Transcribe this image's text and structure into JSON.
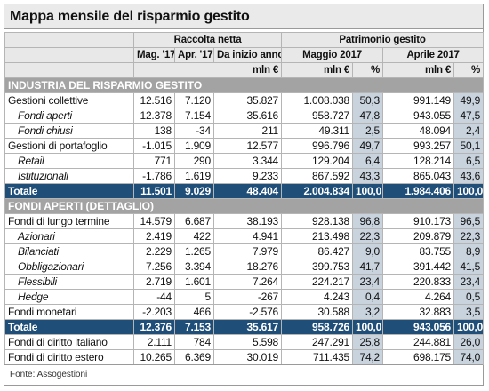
{
  "title": "Mappa mensile del risparmio gestito",
  "table": {
    "group_headers": [
      "Raccolta netta",
      "Patrimonio gestito"
    ],
    "column_headers": [
      "Mag. '17",
      "Apr. '17",
      "Da inizio anno",
      "Maggio 2017",
      "Aprile 2017"
    ],
    "unit_headers": [
      "mln €",
      "mln €",
      "%",
      "mln €",
      "%"
    ],
    "sections": [
      {
        "title": "INDUSTRIA DEL RISPARMIO GESTITO",
        "rows": [
          {
            "label": "Gestioni collettive",
            "kind": "main",
            "cells": [
              "12.516",
              "7.120",
              "35.827",
              "1.008.038",
              "50,3",
              "991.149",
              "49,9"
            ]
          },
          {
            "label": "Fondi aperti",
            "kind": "sub",
            "cells": [
              "12.378",
              "7.154",
              "35.616",
              "958.727",
              "47,8",
              "943.055",
              "47,5"
            ]
          },
          {
            "label": "Fondi chiusi",
            "kind": "sub",
            "cells": [
              "138",
              "-34",
              "211",
              "49.311",
              "2,5",
              "48.094",
              "2,4"
            ]
          },
          {
            "label": "Gestioni di portafoglio",
            "kind": "main",
            "cells": [
              "-1.015",
              "1.909",
              "12.577",
              "996.796",
              "49,7",
              "993.257",
              "50,1"
            ]
          },
          {
            "label": "Retail",
            "kind": "sub",
            "cells": [
              "771",
              "290",
              "3.344",
              "129.204",
              "6,4",
              "128.214",
              "6,5"
            ]
          },
          {
            "label": "Istituzionali",
            "kind": "sub",
            "cells": [
              "-1.786",
              "1.619",
              "9.233",
              "867.592",
              "43,3",
              "865.043",
              "43,6"
            ]
          },
          {
            "label": "Totale",
            "kind": "total",
            "cells": [
              "11.501",
              "9.029",
              "48.404",
              "2.004.834",
              "100,0",
              "1.984.406",
              "100,0"
            ]
          }
        ]
      },
      {
        "title": "FONDI APERTI (DETTAGLIO)",
        "rows": [
          {
            "label": "Fondi di lungo termine",
            "kind": "main",
            "cells": [
              "14.579",
              "6.687",
              "38.193",
              "928.138",
              "96,8",
              "910.173",
              "96,5"
            ]
          },
          {
            "label": "Azionari",
            "kind": "sub",
            "cells": [
              "2.419",
              "422",
              "4.941",
              "213.498",
              "22,3",
              "209.879",
              "22,3"
            ]
          },
          {
            "label": "Bilanciati",
            "kind": "sub",
            "cells": [
              "2.229",
              "1.265",
              "7.979",
              "86.427",
              "9,0",
              "83.755",
              "8,9"
            ]
          },
          {
            "label": "Obbligazionari",
            "kind": "sub",
            "cells": [
              "7.256",
              "3.394",
              "18.276",
              "399.753",
              "41,7",
              "391.442",
              "41,5"
            ]
          },
          {
            "label": "Flessibili",
            "kind": "sub",
            "cells": [
              "2.719",
              "1.601",
              "7.264",
              "224.217",
              "23,4",
              "220.833",
              "23,4"
            ]
          },
          {
            "label": "Hedge",
            "kind": "sub",
            "cells": [
              "-44",
              "5",
              "-267",
              "4.243",
              "0,4",
              "4.264",
              "0,5"
            ]
          },
          {
            "label": "Fondi monetari",
            "kind": "main",
            "cells": [
              "-2.203",
              "466",
              "-2.576",
              "30.588",
              "3,2",
              "32.883",
              "3,5"
            ]
          },
          {
            "label": "Totale",
            "kind": "total",
            "cells": [
              "12.376",
              "7.153",
              "35.617",
              "958.726",
              "100,0",
              "943.056",
              "100,0"
            ]
          },
          {
            "label": "Fondi di diritto italiano",
            "kind": "main",
            "cells": [
              "2.111",
              "784",
              "5.598",
              "247.291",
              "25,8",
              "244.881",
              "26,0"
            ]
          },
          {
            "label": "Fondi di diritto estero",
            "kind": "main",
            "cells": [
              "10.265",
              "6.369",
              "30.019",
              "711.435",
              "74,2",
              "698.175",
              "74,0"
            ]
          }
        ]
      }
    ]
  },
  "source": "Fonte: Assogestioni"
}
